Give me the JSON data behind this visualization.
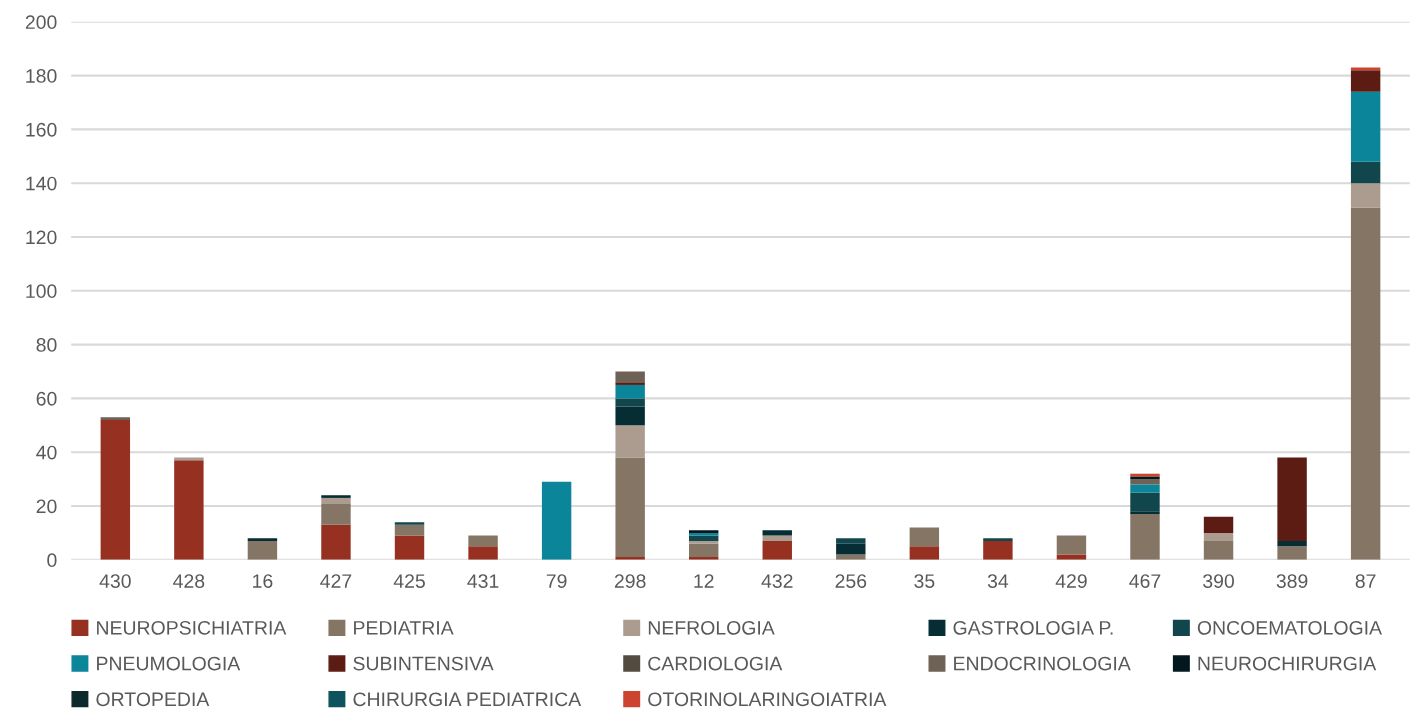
{
  "chart_data": {
    "type": "bar",
    "stacked": true,
    "categories": [
      "430",
      "428",
      "16",
      "427",
      "425",
      "431",
      "79",
      "298",
      "12",
      "432",
      "256",
      "35",
      "34",
      "429",
      "467",
      "390",
      "389",
      "87"
    ],
    "ylim": [
      0,
      200
    ],
    "yticks": [
      0,
      20,
      40,
      60,
      80,
      100,
      120,
      140,
      160,
      180,
      200
    ],
    "grid": "y",
    "legend": "bottom",
    "series": [
      {
        "name": "NEUROPSICHIATRIA",
        "color": "#963122",
        "values": [
          52,
          37,
          0,
          13,
          9,
          5,
          0,
          1,
          1,
          7,
          0,
          5,
          7,
          2,
          0,
          0,
          0,
          0
        ]
      },
      {
        "name": "PEDIATRIA",
        "color": "#857564",
        "values": [
          0,
          0,
          7,
          8,
          4,
          4,
          0,
          37,
          5,
          0,
          2,
          7,
          0,
          7,
          17,
          7,
          5,
          131
        ]
      },
      {
        "name": "NEFROLOGIA",
        "color": "#ab9c8f",
        "values": [
          0,
          1,
          0,
          2,
          0,
          0,
          0,
          12,
          1,
          2,
          0,
          0,
          0,
          0,
          0,
          3,
          0,
          9
        ]
      },
      {
        "name": "GASTROLOGIA P.",
        "color": "#072d34",
        "values": [
          0,
          0,
          1,
          1,
          0,
          0,
          0,
          7,
          0,
          2,
          4,
          0,
          0,
          0,
          1,
          0,
          2,
          0
        ]
      },
      {
        "name": "ONCOEMATOLOGIA",
        "color": "#11464c",
        "values": [
          0,
          0,
          0,
          0,
          1,
          0,
          0,
          3,
          2,
          0,
          2,
          0,
          1,
          0,
          7,
          0,
          0,
          8
        ]
      },
      {
        "name": "PNEUMOLOGIA",
        "color": "#0b8599",
        "values": [
          0,
          0,
          0,
          0,
          0,
          0,
          29,
          5,
          1,
          0,
          0,
          0,
          0,
          0,
          3,
          0,
          0,
          26
        ]
      },
      {
        "name": "SUBINTENSIVA",
        "color": "#5c1c14",
        "values": [
          0,
          0,
          0,
          0,
          0,
          0,
          0,
          1,
          0,
          0,
          0,
          0,
          0,
          0,
          0,
          6,
          31,
          8
        ]
      },
      {
        "name": "CARDIOLOGIA",
        "color": "#534b40",
        "values": [
          0,
          0,
          0,
          0,
          0,
          0,
          0,
          0,
          0,
          0,
          0,
          0,
          0,
          0,
          0,
          0,
          0,
          0
        ]
      },
      {
        "name": "ENDOCRINOLOGIA",
        "color": "#6e6155",
        "values": [
          1,
          0,
          0,
          0,
          0,
          0,
          0,
          4,
          0,
          0,
          0,
          0,
          0,
          0,
          2,
          0,
          0,
          0
        ]
      },
      {
        "name": "NEUROCHIRURGIA",
        "color": "#03181e",
        "values": [
          0,
          0,
          0,
          0,
          0,
          0,
          0,
          0,
          1,
          0,
          0,
          0,
          0,
          0,
          1,
          0,
          0,
          0
        ]
      },
      {
        "name": "ORTOPEDIA",
        "color": "#0c2a2c",
        "values": [
          0,
          0,
          0,
          0,
          0,
          0,
          0,
          0,
          0,
          0,
          0,
          0,
          0,
          0,
          0,
          0,
          0,
          0
        ]
      },
      {
        "name": "CHIRURGIA PEDIATRICA",
        "color": "#0d525c",
        "values": [
          0,
          0,
          0,
          0,
          0,
          0,
          0,
          0,
          0,
          0,
          0,
          0,
          0,
          0,
          0,
          0,
          0,
          0
        ]
      },
      {
        "name": "OTORINOLARINGOIATRIA",
        "color": "#cc4330",
        "values": [
          0,
          0,
          0,
          0,
          0,
          0,
          0,
          0,
          0,
          0,
          0,
          0,
          0,
          0,
          1,
          0,
          0,
          1
        ]
      }
    ]
  }
}
